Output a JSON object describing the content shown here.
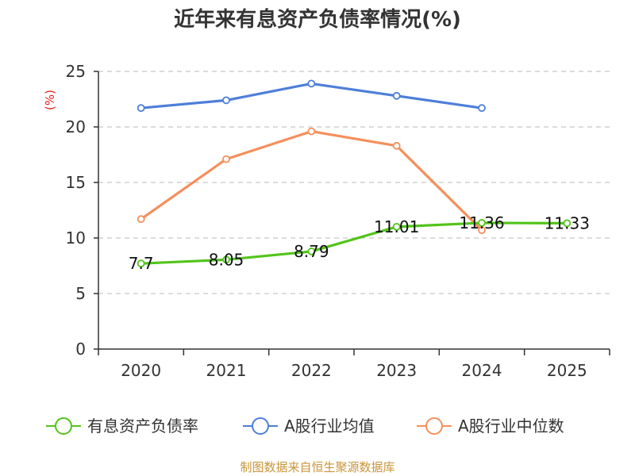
{
  "colors": {
    "series1": "#52c41a",
    "series2": "#4e7fd8",
    "series3": "#f58f5b",
    "unit": "#e02020",
    "source": "#c8953a",
    "grid": "#c8c8c8",
    "axis": "#333333"
  },
  "chart_data": {
    "type": "line",
    "title": "近年来有息资产负债率情况(%)",
    "ylabel": "(%)",
    "xlabel": "",
    "categories": [
      "2020",
      "2021",
      "2022",
      "2023",
      "2024",
      "2025"
    ],
    "ylim": [
      0,
      25
    ],
    "yticks": [
      0,
      5,
      10,
      15,
      20,
      25
    ],
    "grid": true,
    "legend_position": "bottom",
    "series": [
      {
        "name": "有息资产负债率",
        "values": [
          7.7,
          8.05,
          8.79,
          11.01,
          11.36,
          11.33
        ],
        "labels": [
          "7.7",
          "8.05",
          "8.79",
          "11.01",
          "11.36",
          "11.33"
        ]
      },
      {
        "name": "A股行业均值",
        "values": [
          21.7,
          22.4,
          23.9,
          22.8,
          21.7,
          null
        ]
      },
      {
        "name": "A股行业中位数",
        "values": [
          11.7,
          17.1,
          19.6,
          18.3,
          10.7,
          null
        ]
      }
    ]
  },
  "source": "制图数据来自恒生聚源数据库"
}
